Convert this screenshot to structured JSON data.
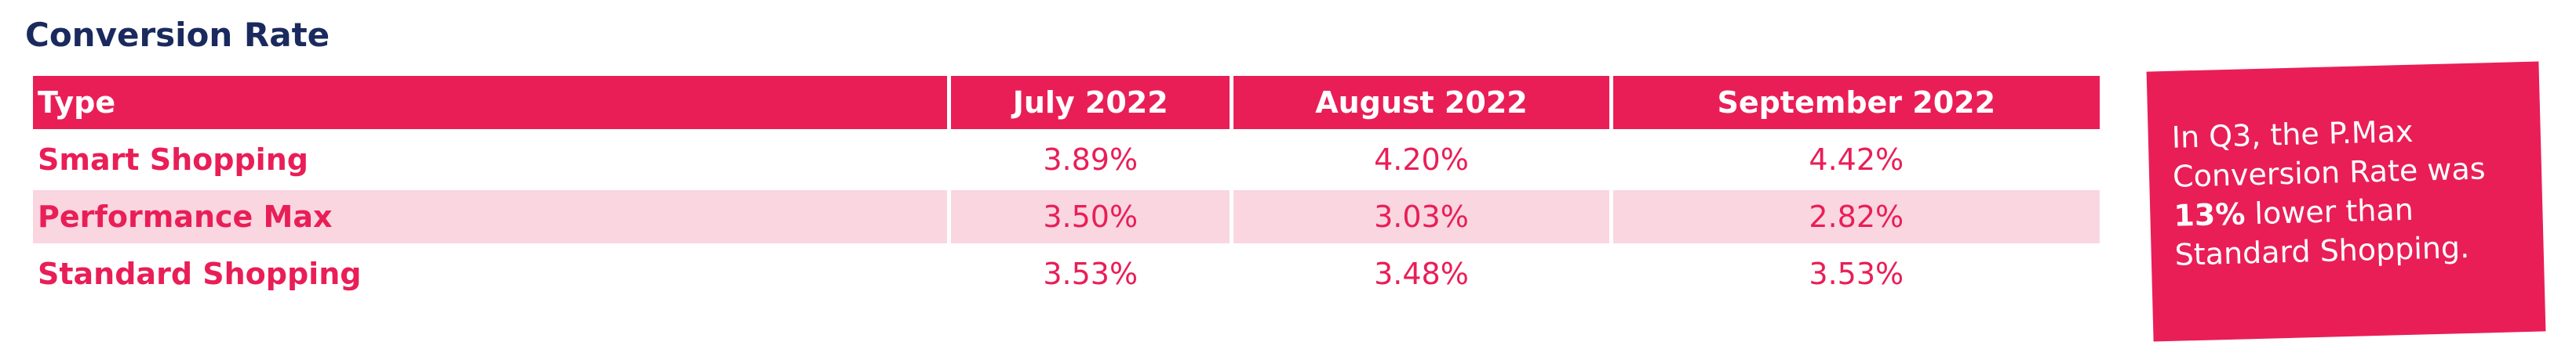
{
  "header": {
    "title": "Conversion Rate"
  },
  "table": {
    "columns": [
      "Type",
      "July 2022",
      "August 2022",
      "September 2022"
    ],
    "rows": [
      [
        "Smart Shopping",
        "3.89%",
        "4.20%",
        "4.42%"
      ],
      [
        "Performance Max",
        "3.50%",
        "3.03%",
        "2.82%"
      ],
      [
        "Standard Shopping",
        "3.53%",
        "3.48%",
        "3.53%"
      ]
    ]
  },
  "callout": {
    "before": "In Q3, the P.Max Conversion Rate was",
    "emphasis": "13%",
    "after": "lower than Standard Shopping."
  }
}
